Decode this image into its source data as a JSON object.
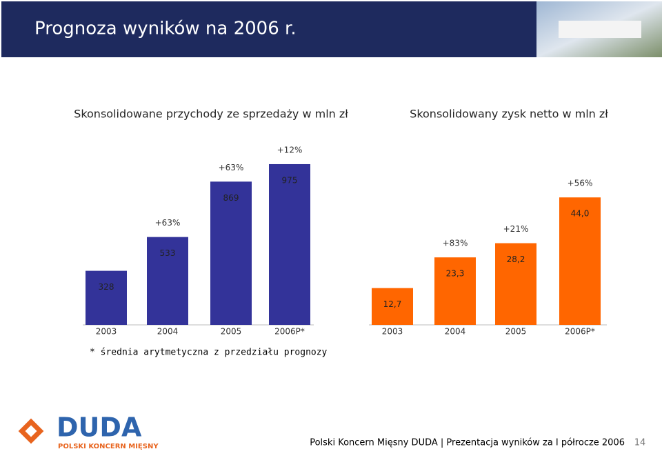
{
  "slide": {
    "title": "Prognoza wyników na 2006 r.",
    "note": "* średnia arytmetyczna z przedziału prognozy",
    "logo": "DUDA",
    "logo_sub": "POLSKI KONCERN MIĘSNY",
    "footer": "Polski Koncern Mięsny DUDA | Prezentacja wyników za I półrocze 2006",
    "page": "14"
  },
  "chart_data": [
    {
      "type": "bar",
      "title": "Skonsolidowane przychody ze sprzedaży w mln zł",
      "categories": [
        "2003",
        "2004",
        "2005",
        "2006P*"
      ],
      "values": [
        328,
        533,
        869,
        975
      ],
      "annotations": [
        null,
        "+63%",
        "+63%",
        "+12%"
      ],
      "color": "#333399",
      "ylim": [
        0,
        1000
      ]
    },
    {
      "type": "bar",
      "title": "Skonsolidowany zysk netto w mln zł",
      "categories": [
        "2003",
        "2004",
        "2005",
        "2006P*"
      ],
      "values": [
        12.7,
        23.3,
        28.2,
        44.0
      ],
      "value_labels": [
        "12,7",
        "23,3",
        "28,2",
        "44,0"
      ],
      "annotations": [
        null,
        "+83%",
        "+21%",
        "+56%"
      ],
      "color": "#ff6600",
      "ylim": [
        0,
        50
      ]
    }
  ]
}
